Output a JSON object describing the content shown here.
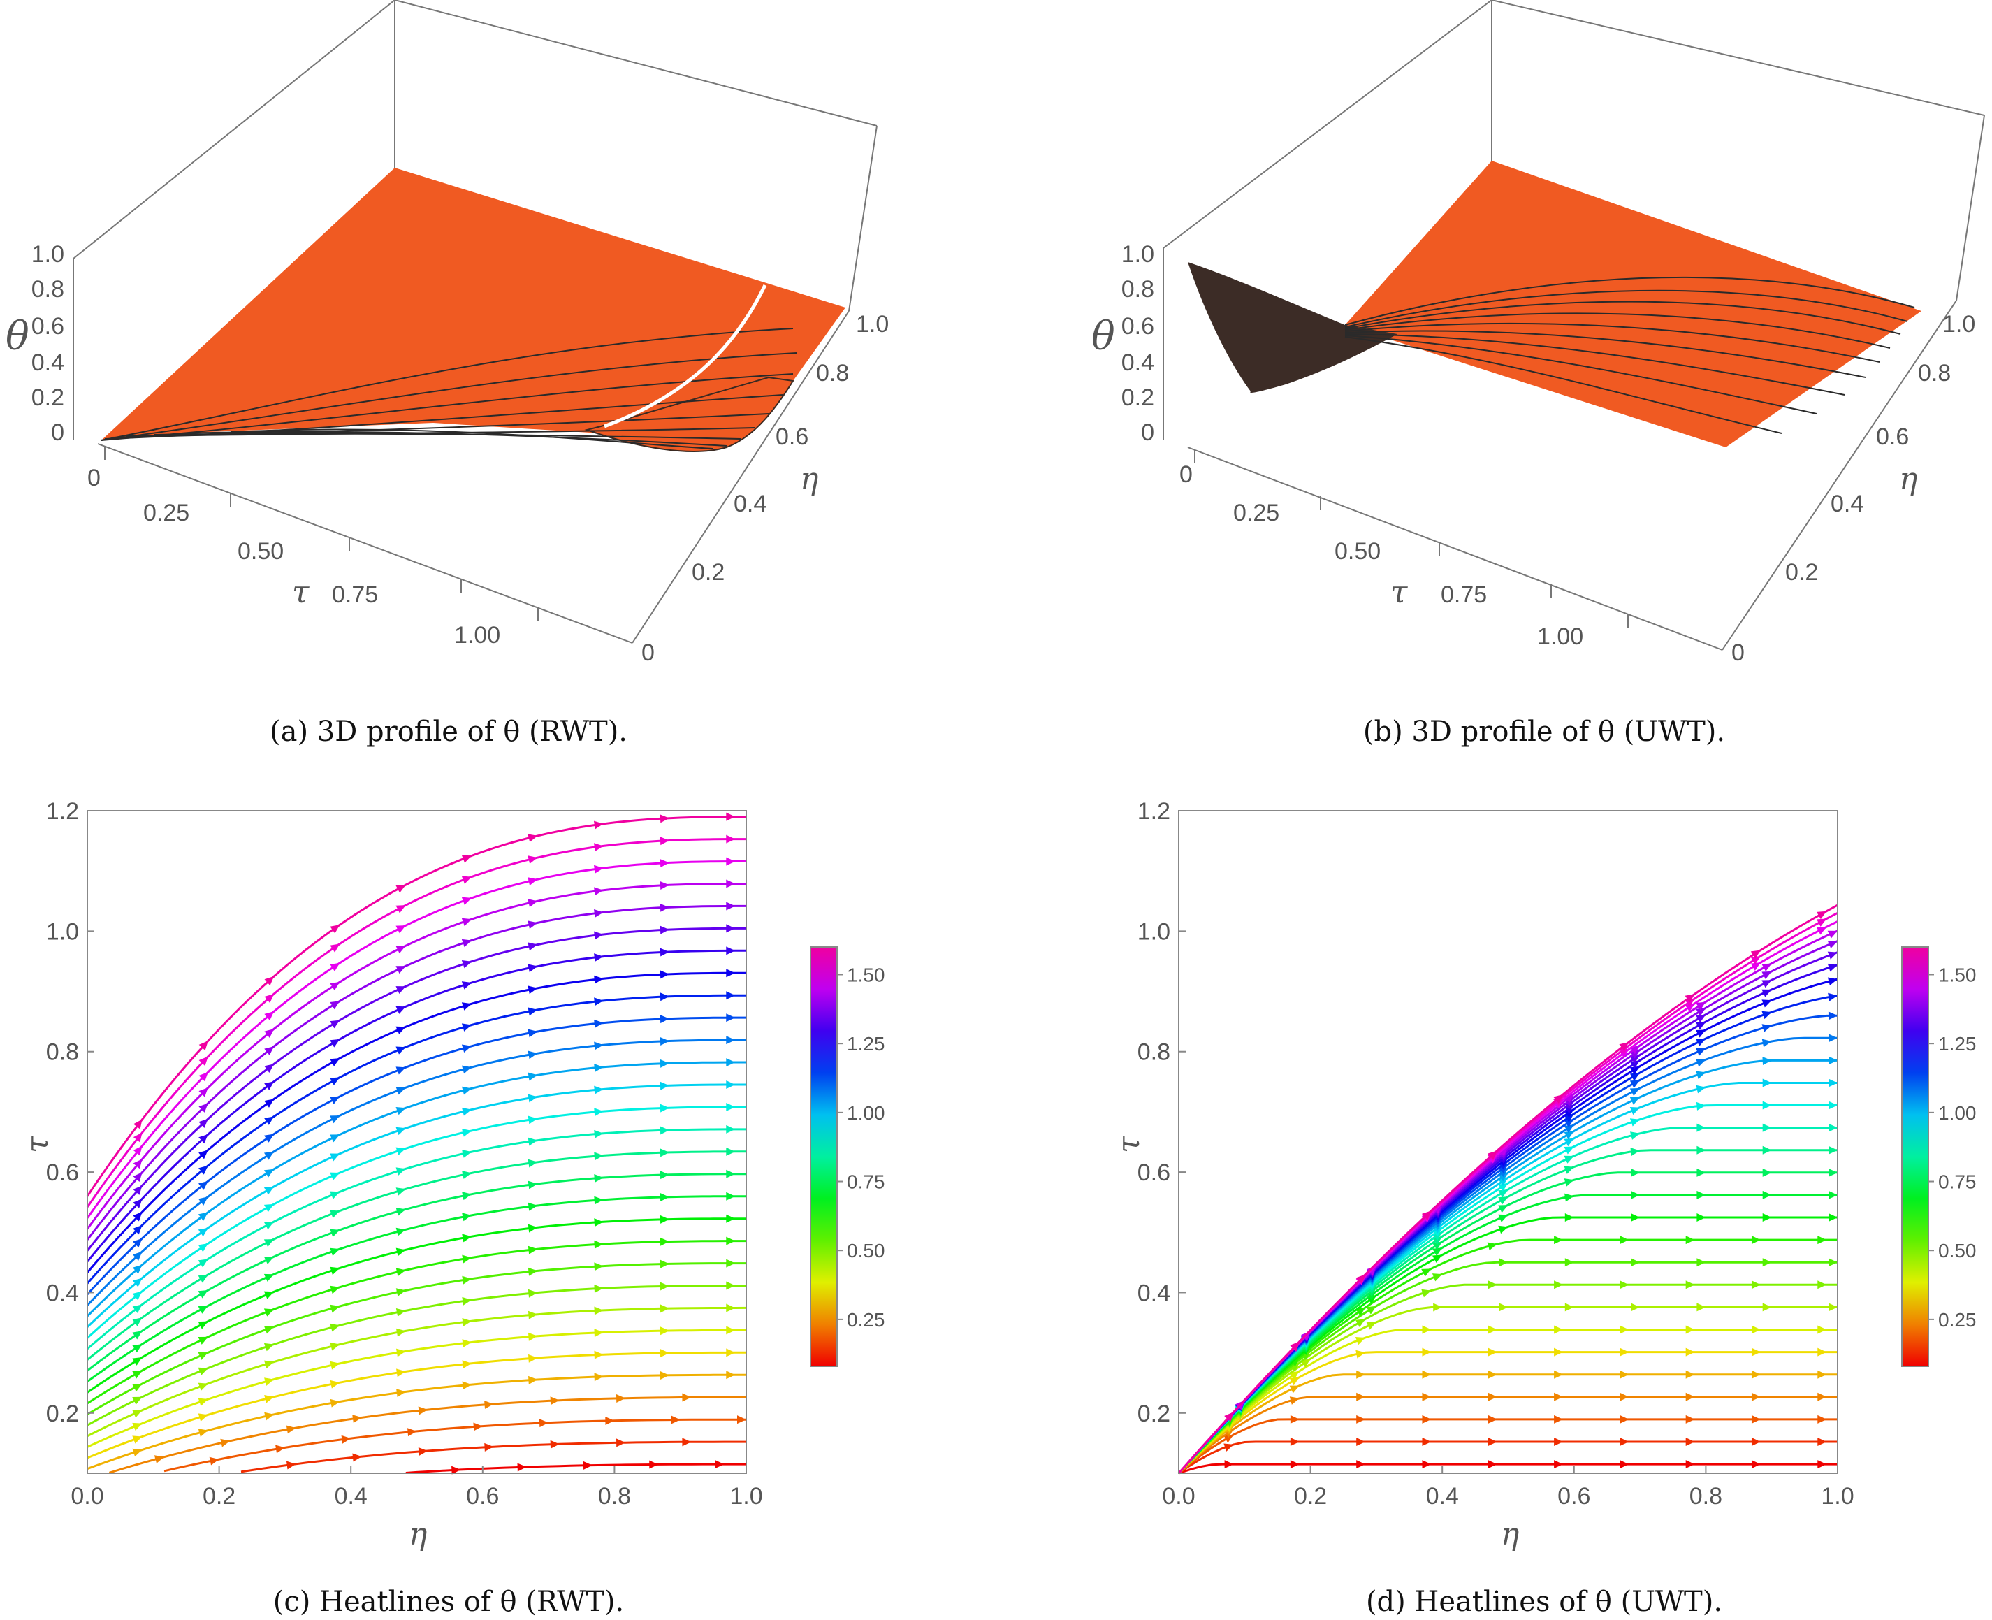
{
  "chart_data": [
    {
      "id": "a",
      "type": "surface3d",
      "caption": "(a) 3D profile of θ (RWT).",
      "case": "RWT",
      "axes": {
        "z_label": "θ",
        "z_ticks": [
          "0",
          "0.2",
          "0.4",
          "0.6",
          "0.8",
          "1.0"
        ],
        "x_label": "τ",
        "x_ticks": [
          "0",
          "0.25",
          "0.50",
          "0.75",
          "1.00"
        ],
        "y_label": "η",
        "y_ticks": [
          "0",
          "0.2",
          "0.4",
          "0.6",
          "0.8",
          "1.0"
        ]
      },
      "surface_color": "#f05a22",
      "mesh_color": "#2a2a2a",
      "highlight_color": "#ffffff"
    },
    {
      "id": "b",
      "type": "surface3d",
      "caption": "(b) 3D profile of θ (UWT).",
      "case": "UWT",
      "axes": {
        "z_label": "θ",
        "z_ticks": [
          "0",
          "0.2",
          "0.4",
          "0.6",
          "0.8",
          "1.0"
        ],
        "x_label": "τ",
        "x_ticks": [
          "0",
          "0.25",
          "0.50",
          "0.75",
          "1.00"
        ],
        "y_label": "η",
        "y_ticks": [
          "0",
          "0.2",
          "0.4",
          "0.6",
          "0.8",
          "1.0"
        ]
      },
      "surface_color": "#f05a22",
      "mesh_color": "#2a2a2a"
    },
    {
      "id": "c",
      "type": "streamplot",
      "caption": "(c) Heatlines of θ (RWT).",
      "case": "RWT",
      "x_label": "η",
      "y_label": "τ",
      "xlim": [
        0,
        1.0
      ],
      "ylim": [
        0.1,
        1.2
      ],
      "x_ticks": [
        0.0,
        0.2,
        0.4,
        0.6,
        0.8,
        1.0
      ],
      "y_ticks": [
        0.2,
        0.4,
        0.6,
        0.8,
        1.0,
        1.2
      ],
      "colorbar": {
        "range": [
          0.08,
          1.6
        ],
        "ticks": [
          0.25,
          0.5,
          0.75,
          1.0,
          1.25,
          1.5
        ],
        "tick_labels": [
          "0.25",
          "0.50",
          "0.75",
          "1.00",
          "1.25",
          "1.50"
        ],
        "colormap": "rainbow"
      },
      "stream_count": 30
    },
    {
      "id": "d",
      "type": "streamplot",
      "caption": "(d) Heatlines of θ (UWT).",
      "case": "UWT",
      "x_label": "η",
      "y_label": "τ",
      "xlim": [
        0,
        1.0
      ],
      "ylim": [
        0.1,
        1.2
      ],
      "x_ticks": [
        0.0,
        0.2,
        0.4,
        0.6,
        0.8,
        1.0
      ],
      "y_ticks": [
        0.2,
        0.4,
        0.6,
        0.8,
        1.0,
        1.2
      ],
      "colorbar": {
        "range": [
          0.08,
          1.6
        ],
        "ticks": [
          0.25,
          0.5,
          0.75,
          1.0,
          1.25,
          1.5
        ],
        "tick_labels": [
          "0.25",
          "0.50",
          "0.75",
          "1.00",
          "1.25",
          "1.50"
        ],
        "colormap": "rainbow"
      },
      "stream_count": 30
    }
  ]
}
